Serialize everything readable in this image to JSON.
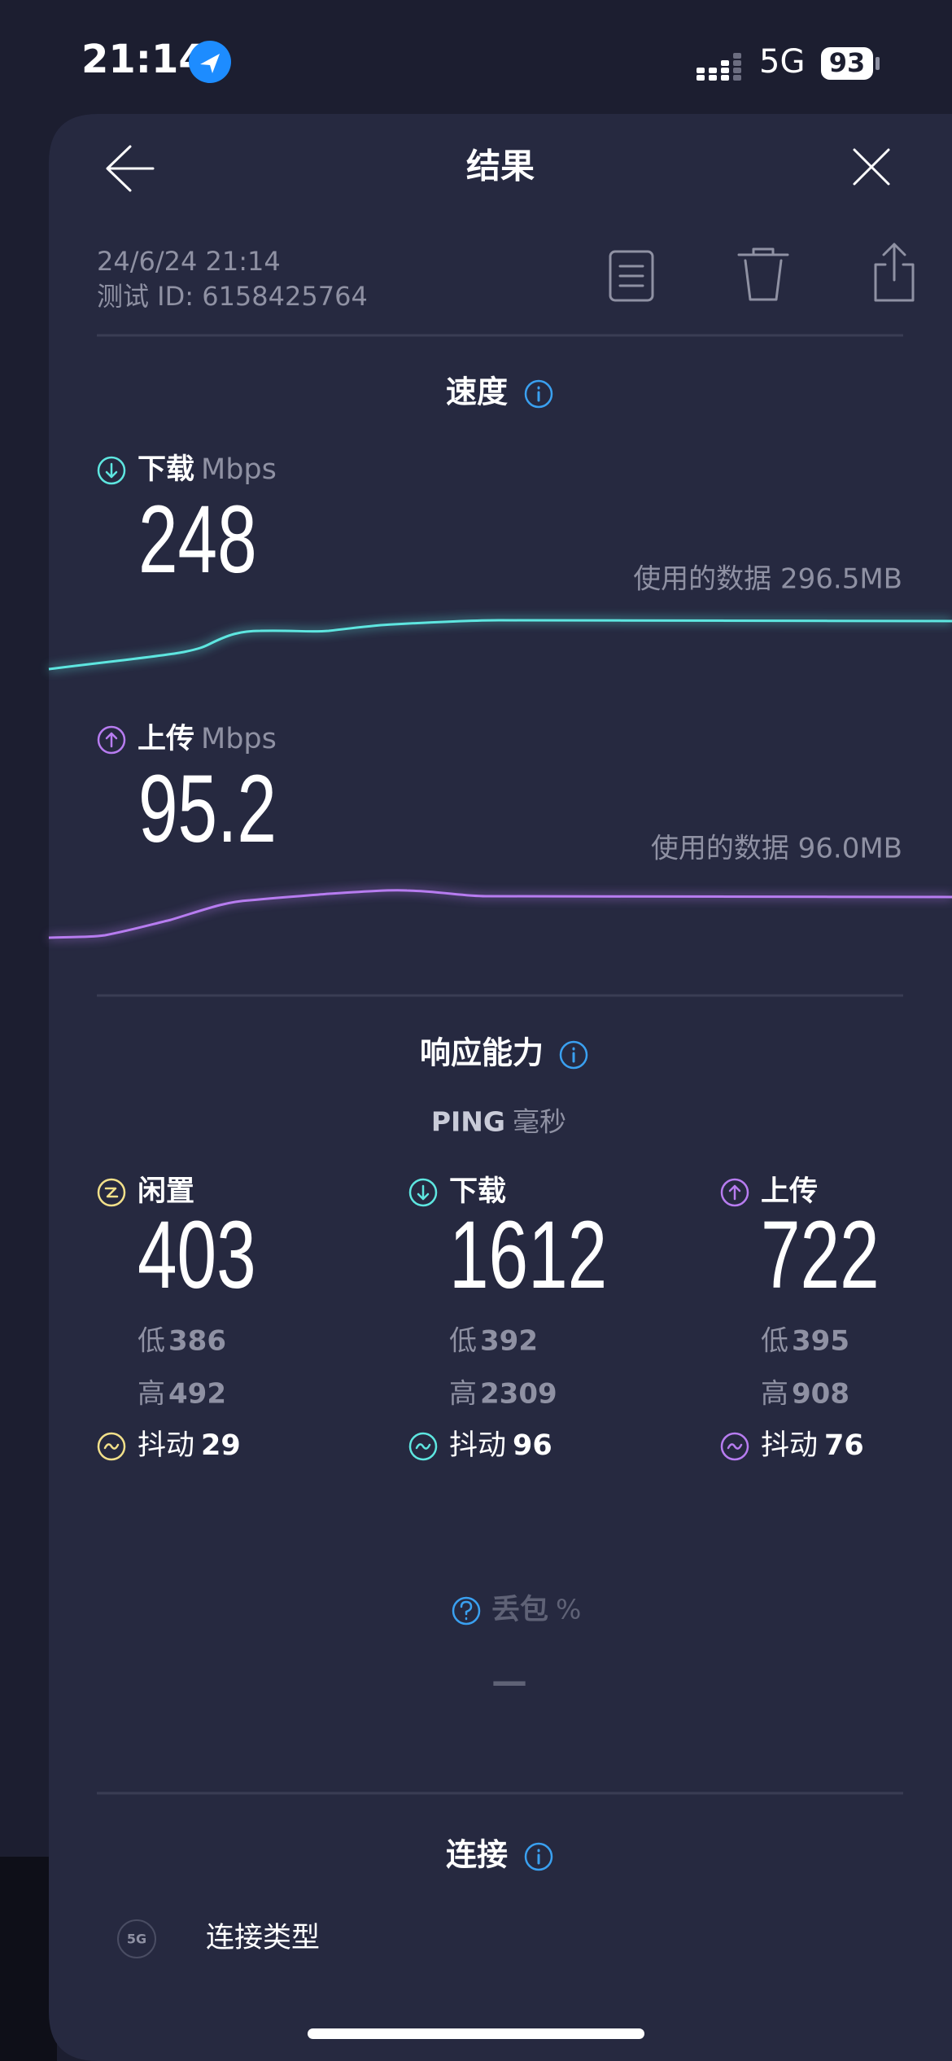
{
  "status_bar": {
    "time": "21:14",
    "network": "5G",
    "battery": 93
  },
  "header": {
    "title": "结果"
  },
  "meta": {
    "datetime": "24/6/24 21:14",
    "test_id": "测试 ID: 6158425764"
  },
  "speed": {
    "title": "速度",
    "download": {
      "label": "下载",
      "unit": "Mbps",
      "value": 248,
      "data_used": "使用的数据 296.5MB"
    },
    "upload": {
      "label": "上传",
      "unit": "Mbps",
      "value": 95.2,
      "data_used": "使用的数据 96.0MB"
    }
  },
  "responsiveness": {
    "title": "响应能力",
    "ping_label": "PING",
    "ping_unit": "毫秒",
    "columns": [
      {
        "label": "闲置",
        "value": 403,
        "low_label": "低",
        "low": 386,
        "high_label": "高",
        "high": 492,
        "jitter_label": "抖动",
        "jitter": 29
      },
      {
        "label": "下载",
        "value": 1612,
        "low_label": "低",
        "low": 392,
        "high_label": "高",
        "high": 2309,
        "jitter_label": "抖动",
        "jitter": 96
      },
      {
        "label": "上传",
        "value": 722,
        "low_label": "低",
        "low": 395,
        "high_label": "高",
        "high": 908,
        "jitter_label": "抖动",
        "jitter": 76
      }
    ]
  },
  "packet_loss": {
    "label": "丢包",
    "unit": "%",
    "value": "—"
  },
  "connection": {
    "title": "连接",
    "badge": "5G",
    "type_label": "连接类型"
  }
}
